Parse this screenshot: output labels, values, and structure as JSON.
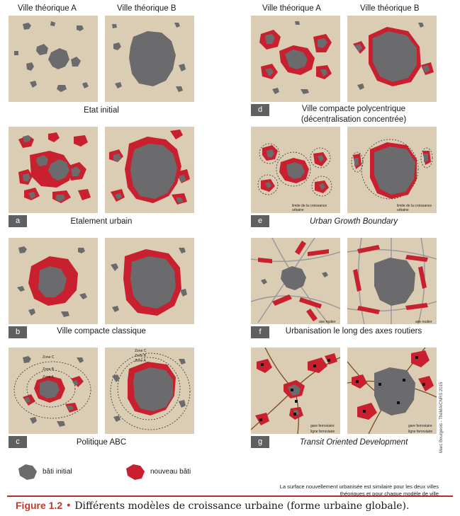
{
  "column_headers": {
    "left_a": "Ville théorique A",
    "left_b": "Ville théorique B",
    "right_a": "Ville théorique A",
    "right_b": "Ville théorique B"
  },
  "panels": {
    "initial": {
      "tag": "",
      "caption": "Etat initial"
    },
    "a": {
      "tag": "a",
      "caption": "Etalement urbain"
    },
    "b": {
      "tag": "b",
      "caption": "Ville compacte classique"
    },
    "c": {
      "tag": "c",
      "caption": "Politique ABC",
      "zones": [
        "Zone C",
        "Zone B",
        "Zone A"
      ]
    },
    "d": {
      "tag": "d",
      "caption_line1": "Ville compacte polycentrique",
      "caption_line2": "(décentralisation concentrée)"
    },
    "e": {
      "tag": "e",
      "caption": "Urban Growth Boundary",
      "legend": "limite de la croissance urbaine"
    },
    "f": {
      "tag": "f",
      "caption": "Urbanisation le long des axes routiers",
      "legend": "axe routier"
    },
    "g": {
      "tag": "g",
      "caption": "Transit Oriented Development",
      "legend_station": "gare ferroviaire",
      "legend_rail": "ligne ferroviaire"
    }
  },
  "legend": {
    "initial": "bâti initial",
    "new": "nouveau bâti"
  },
  "note": "La surface nouvellement urbanisée est similaire pour les deux villes théoriques et pour chaque modèle de ville",
  "credit": "Marc Bourgeois - ThéMA/CNRS 2015",
  "figure_caption": {
    "label": "Figure  1.2",
    "bullet": "•",
    "text": "Différents modèles de croissance urbaine (forme urbaine globale)."
  },
  "colors": {
    "background": "#dbcdb3",
    "built": "#6b6b6d",
    "new_built": "#c8202e",
    "road": "#9a9a9a",
    "rail": "#7a4a1a",
    "accent": "#c0392b"
  }
}
